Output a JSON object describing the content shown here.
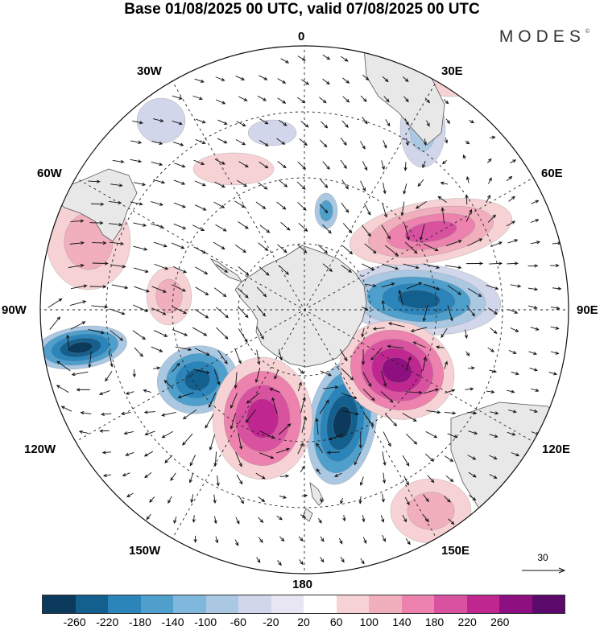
{
  "title": "Base 01/08/2025 00 UTC, valid 07/08/2025 00 UTC",
  "brand": "MODES",
  "brand_mark": "©",
  "longitude_labels": [
    "0",
    "30E",
    "60E",
    "90E",
    "120E",
    "150E",
    "180",
    "150W",
    "120W",
    "90W",
    "60W",
    "30W"
  ],
  "reference_vector": "30",
  "colorbar": {
    "ticks": [
      "-260",
      "-220",
      "-180",
      "-140",
      "-100",
      "-60",
      "-20",
      "20",
      "60",
      "100",
      "140",
      "180",
      "220",
      "260"
    ],
    "colors": [
      "#0b3a5c",
      "#13608f",
      "#2b85bb",
      "#4e9fcc",
      "#7fb8dc",
      "#abc8e3",
      "#d2d6ea",
      "#e8e6f2",
      "#ffffff",
      "#f7d2d4",
      "#f1aebd",
      "#ec82ad",
      "#d952a0",
      "#bf268f",
      "#8e0f80",
      "#5b0a6b"
    ]
  },
  "colors": {
    "land": "#e8e8e8",
    "coast": "#555555",
    "grid": "#222222"
  }
}
